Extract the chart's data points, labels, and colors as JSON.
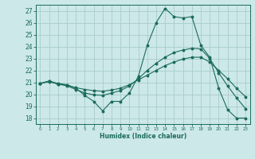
{
  "xlabel": "Humidex (Indice chaleur)",
  "background_color": "#cce8e8",
  "grid_color": "#aacccc",
  "line_color": "#1a6b5a",
  "ylim": [
    17.5,
    27.5
  ],
  "xlim": [
    -0.5,
    23.5
  ],
  "yticks": [
    18,
    19,
    20,
    21,
    22,
    23,
    24,
    25,
    26,
    27
  ],
  "xticks": [
    0,
    1,
    2,
    3,
    4,
    5,
    6,
    7,
    8,
    9,
    10,
    11,
    12,
    13,
    14,
    15,
    16,
    17,
    18,
    19,
    20,
    21,
    22,
    23
  ],
  "series": [
    [
      20.9,
      21.1,
      20.9,
      20.8,
      20.5,
      19.9,
      19.4,
      18.6,
      19.4,
      19.4,
      20.1,
      21.5,
      24.1,
      26.0,
      27.2,
      26.5,
      26.4,
      26.5,
      24.1,
      23.1,
      20.5,
      18.7,
      18.0,
      18.0
    ],
    [
      20.9,
      21.1,
      20.85,
      20.7,
      20.4,
      20.1,
      19.95,
      19.9,
      20.1,
      20.3,
      20.7,
      21.3,
      22.0,
      22.6,
      23.1,
      23.5,
      23.7,
      23.85,
      23.8,
      23.0,
      21.8,
      20.7,
      19.7,
      18.8
    ],
    [
      20.9,
      21.05,
      20.85,
      20.75,
      20.55,
      20.4,
      20.3,
      20.25,
      20.35,
      20.5,
      20.8,
      21.2,
      21.6,
      22.0,
      22.4,
      22.7,
      22.95,
      23.1,
      23.1,
      22.7,
      22.0,
      21.3,
      20.5,
      19.8
    ]
  ]
}
